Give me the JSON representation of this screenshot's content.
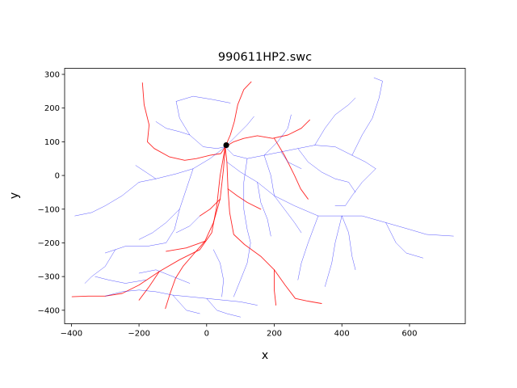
{
  "chart_data": {
    "type": "line",
    "title": "990611HP2.swc",
    "xlabel": "x",
    "ylabel": "y",
    "xlim": [
      -420,
      765
    ],
    "ylim": [
      -440,
      318
    ],
    "xticks": [
      -400,
      -200,
      0,
      200,
      400,
      600
    ],
    "yticks": [
      -400,
      -300,
      -200,
      -100,
      0,
      100,
      200,
      300
    ],
    "grid": false,
    "legend": "none",
    "colors": {
      "axon": "#0000ff",
      "dendrite": "#ff0000",
      "soma": "#000000"
    },
    "soma": {
      "x": 58,
      "y": 90
    },
    "series": [
      {
        "color": "#ff0000",
        "paths": [
          [
            [
              55,
              85
            ],
            [
              60,
              40
            ],
            [
              63,
              -40
            ],
            [
              68,
              -110
            ],
            [
              80,
              -175
            ],
            [
              112,
              -205
            ],
            [
              160,
              -240
            ],
            [
              200,
              -280
            ],
            [
              232,
              -325
            ],
            [
              262,
              -365
            ],
            [
              295,
              -372
            ],
            [
              340,
              -380
            ]
          ],
          [
            [
              55,
              85
            ],
            [
              50,
              20
            ],
            [
              40,
              -70
            ],
            [
              20,
              -140
            ],
            [
              -5,
              -195
            ],
            [
              -40,
              -235
            ],
            [
              -70,
              -270
            ],
            [
              -92,
              -305
            ],
            [
              -108,
              -350
            ],
            [
              -122,
              -395
            ]
          ],
          [
            [
              55,
              85
            ],
            [
              42,
              65
            ],
            [
              10,
              60
            ],
            [
              -30,
              50
            ],
            [
              -65,
              45
            ],
            [
              -110,
              55
            ],
            [
              -155,
              80
            ],
            [
              -175,
              100
            ],
            [
              -170,
              150
            ],
            [
              -185,
              210
            ],
            [
              -190,
              275
            ]
          ],
          [
            [
              55,
              85
            ],
            [
              70,
              120
            ],
            [
              82,
              160
            ],
            [
              92,
              210
            ],
            [
              110,
              255
            ],
            [
              132,
              278
            ]
          ],
          [
            [
              55,
              85
            ],
            [
              80,
              100
            ],
            [
              110,
              110
            ],
            [
              150,
              118
            ],
            [
              195,
              110
            ],
            [
              240,
              120
            ],
            [
              280,
              140
            ],
            [
              305,
              165
            ]
          ],
          [
            [
              200,
              110
            ],
            [
              230,
              60
            ],
            [
              260,
              0
            ],
            [
              278,
              -40
            ],
            [
              300,
              -70
            ]
          ],
          [
            [
              55,
              85
            ],
            [
              40,
              0
            ],
            [
              30,
              -90
            ],
            [
              15,
              -170
            ],
            [
              -20,
              -220
            ],
            [
              -80,
              -250
            ],
            [
              -140,
              -285
            ],
            [
              -200,
              -325
            ],
            [
              -250,
              -350
            ],
            [
              -300,
              -358
            ],
            [
              -350,
              -358
            ],
            [
              -398,
              -360
            ]
          ],
          [
            [
              -140,
              -285
            ],
            [
              -170,
              -330
            ],
            [
              -200,
              -370
            ]
          ],
          [
            [
              63,
              -40
            ],
            [
              90,
              -60
            ],
            [
              120,
              -80
            ],
            [
              160,
              -100
            ]
          ],
          [
            [
              40,
              -70
            ],
            [
              10,
              -100
            ],
            [
              -20,
              -120
            ]
          ],
          [
            [
              200,
              -280
            ],
            [
              200,
              -340
            ],
            [
              205,
              -385
            ]
          ],
          [
            [
              -5,
              -195
            ],
            [
              -60,
              -215
            ],
            [
              -120,
              -225
            ]
          ]
        ]
      },
      {
        "color": "#0000ff",
        "paths": [
          [
            [
              55,
              85
            ],
            [
              80,
              60
            ],
            [
              120,
              50
            ],
            [
              170,
              60
            ],
            [
              220,
              70
            ],
            [
              270,
              80
            ],
            [
              320,
              90
            ],
            [
              380,
              85
            ],
            [
              430,
              60
            ],
            [
              470,
              40
            ],
            [
              500,
              20
            ]
          ],
          [
            [
              55,
              85
            ],
            [
              30,
              80
            ],
            [
              -10,
              85
            ],
            [
              -50,
              120
            ],
            [
              -80,
              170
            ],
            [
              -90,
              220
            ]
          ],
          [
            [
              -90,
              220
            ],
            [
              -40,
              235
            ],
            [
              20,
              225
            ],
            [
              70,
              215
            ]
          ],
          [
            [
              55,
              85
            ],
            [
              90,
              120
            ],
            [
              120,
              150
            ],
            [
              140,
              175
            ]
          ],
          [
            [
              55,
              85
            ],
            [
              10,
              50
            ],
            [
              -40,
              20
            ],
            [
              -90,
              5
            ],
            [
              -150,
              -10
            ],
            [
              -200,
              -20
            ]
          ],
          [
            [
              -40,
              20
            ],
            [
              -60,
              -40
            ],
            [
              -80,
              -100
            ],
            [
              -95,
              -160
            ],
            [
              -120,
              -200
            ],
            [
              -175,
              -210
            ],
            [
              -240,
              -210
            ],
            [
              -270,
              -220
            ],
            [
              -300,
              -230
            ]
          ],
          [
            [
              -200,
              -20
            ],
            [
              -250,
              -60
            ],
            [
              -300,
              -90
            ],
            [
              -340,
              -110
            ],
            [
              -390,
              -120
            ]
          ],
          [
            [
              60,
              40
            ],
            [
              100,
              10
            ],
            [
              150,
              -20
            ],
            [
              200,
              -60
            ],
            [
              260,
              -90
            ],
            [
              330,
              -120
            ],
            [
              400,
              -120
            ],
            [
              460,
              -120
            ],
            [
              530,
              -140
            ],
            [
              600,
              -160
            ],
            [
              650,
              -175
            ],
            [
              730,
              -180
            ]
          ],
          [
            [
              400,
              -120
            ],
            [
              420,
              -170
            ],
            [
              430,
              -240
            ],
            [
              440,
              -280
            ]
          ],
          [
            [
              400,
              -120
            ],
            [
              380,
              -200
            ],
            [
              370,
              -260
            ],
            [
              350,
              -330
            ]
          ],
          [
            [
              330,
              -120
            ],
            [
              300,
              -200
            ],
            [
              280,
              -260
            ],
            [
              270,
              -310
            ]
          ],
          [
            [
              530,
              -140
            ],
            [
              560,
              -200
            ],
            [
              590,
              -230
            ],
            [
              640,
              -245
            ]
          ],
          [
            [
              430,
              60
            ],
            [
              460,
              120
            ],
            [
              490,
              170
            ],
            [
              510,
              230
            ],
            [
              520,
              280
            ],
            [
              495,
              290
            ]
          ],
          [
            [
              320,
              90
            ],
            [
              350,
              140
            ],
            [
              380,
              180
            ],
            [
              420,
              210
            ],
            [
              440,
              230
            ]
          ],
          [
            [
              270,
              80
            ],
            [
              300,
              40
            ],
            [
              340,
              10
            ],
            [
              380,
              -10
            ],
            [
              420,
              -20
            ],
            [
              440,
              -50
            ]
          ],
          [
            [
              170,
              60
            ],
            [
              190,
              0
            ],
            [
              200,
              -60
            ],
            [
              230,
              -100
            ],
            [
              260,
              -140
            ],
            [
              280,
              -170
            ]
          ],
          [
            [
              120,
              50
            ],
            [
              110,
              -20
            ],
            [
              110,
              -100
            ],
            [
              120,
              -160
            ],
            [
              130,
              -200
            ],
            [
              120,
              -260
            ],
            [
              100,
              -310
            ],
            [
              80,
              -360
            ]
          ],
          [
            [
              -80,
              -100
            ],
            [
              -120,
              -140
            ],
            [
              -160,
              -170
            ],
            [
              -200,
              -190
            ]
          ],
          [
            [
              -270,
              -220
            ],
            [
              -300,
              -270
            ],
            [
              -340,
              -300
            ],
            [
              -360,
              -320
            ]
          ],
          [
            [
              -300,
              -358
            ],
            [
              -250,
              -345
            ],
            [
              -200,
              -340
            ],
            [
              -150,
              -345
            ],
            [
              -100,
              -355
            ],
            [
              -50,
              -360
            ],
            [
              0,
              -365
            ],
            [
              50,
              -370
            ],
            [
              100,
              -375
            ],
            [
              150,
              -385
            ]
          ],
          [
            [
              -100,
              -355
            ],
            [
              -60,
              -400
            ],
            [
              -20,
              -410
            ]
          ],
          [
            [
              0,
              -365
            ],
            [
              30,
              -400
            ],
            [
              60,
              -410
            ],
            [
              100,
              -420
            ]
          ],
          [
            [
              -330,
              -300
            ],
            [
              -290,
              -310
            ],
            [
              -240,
              -320
            ],
            [
              -180,
              -310
            ]
          ],
          [
            [
              -200,
              -290
            ],
            [
              -150,
              -280
            ],
            [
              -100,
              -300
            ],
            [
              -50,
              -320
            ]
          ],
          [
            [
              170,
              60
            ],
            [
              210,
              100
            ],
            [
              240,
              140
            ],
            [
              250,
              180
            ]
          ],
          [
            [
              -150,
              -10
            ],
            [
              -180,
              10
            ],
            [
              -210,
              30
            ]
          ],
          [
            [
              500,
              20
            ],
            [
              460,
              -20
            ],
            [
              430,
              -60
            ],
            [
              410,
              -90
            ],
            [
              380,
              -90
            ]
          ],
          [
            [
              220,
              70
            ],
            [
              240,
              40
            ],
            [
              280,
              20
            ]
          ],
          [
            [
              -50,
              120
            ],
            [
              -80,
              130
            ],
            [
              -120,
              140
            ],
            [
              -150,
              160
            ]
          ],
          [
            [
              20,
              -220
            ],
            [
              40,
              -260
            ],
            [
              50,
              -310
            ],
            [
              45,
              -360
            ]
          ],
          [
            [
              150,
              -20
            ],
            [
              160,
              -80
            ],
            [
              180,
              -130
            ],
            [
              190,
              -180
            ]
          ],
          [
            [
              -20,
              -120
            ],
            [
              -50,
              -150
            ],
            [
              -90,
              -170
            ]
          ]
        ]
      }
    ]
  }
}
